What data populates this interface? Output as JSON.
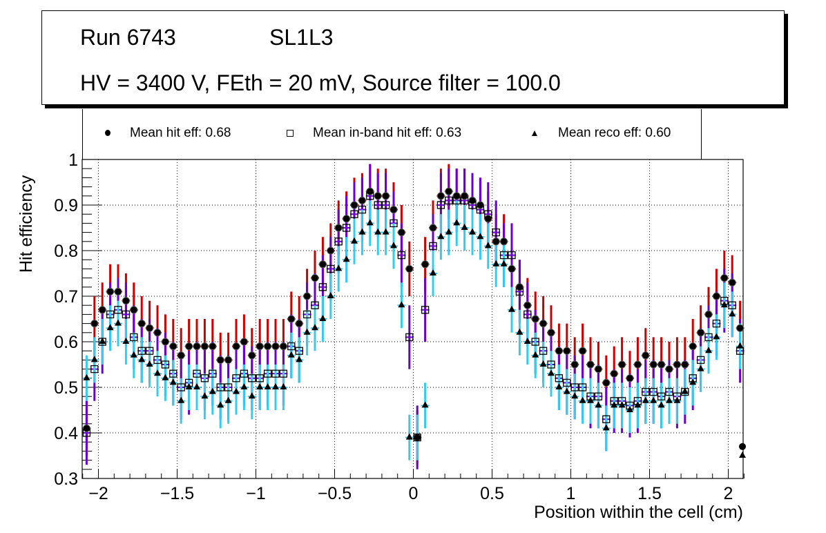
{
  "title": {
    "line1_run": "Run 6743",
    "line1_layer": "SL1L3",
    "line2": "HV = 3400 V, FEth = 20 mV, Source filter = 100.0"
  },
  "legend": [
    {
      "marker": "filled-circle",
      "label": "Mean hit  eff: 0.68"
    },
    {
      "marker": "open-square",
      "label": "Mean in-band hit eff: 0.63"
    },
    {
      "marker": "filled-triangle",
      "label": "Mean reco eff: 0.60"
    }
  ],
  "colors": {
    "hit_err": "#cc0000",
    "inband_err": "#6a00cc",
    "reco_err": "#33ccee",
    "marker": "#000000"
  },
  "chart_data": {
    "type": "scatter",
    "title": "",
    "xlabel": "Position within the cell (cm)",
    "ylabel": "Hit efficiency",
    "xlim": [
      -2.1,
      2.1
    ],
    "ylim": [
      0.3,
      1.0
    ],
    "grid": true,
    "legend_position": "top",
    "xticks": [
      "-2",
      "-1.5",
      "-1",
      "-0.5",
      "0",
      "0.5",
      "1",
      "1.5",
      "2"
    ],
    "xtick_values": [
      -2,
      -1.5,
      -1,
      -0.5,
      0,
      0.5,
      1,
      1.5,
      2
    ],
    "yticks": [
      "0.3",
      "0.4",
      "0.5",
      "0.6",
      "0.7",
      "0.8",
      "0.9",
      "1"
    ],
    "ytick_values": [
      0.3,
      0.4,
      0.5,
      0.6,
      0.7,
      0.8,
      0.9,
      1.0
    ],
    "x_start": -2.075,
    "x_step": 0.05,
    "series": [
      {
        "name": "Mean hit eff",
        "marker": "circle",
        "err": 0.06,
        "values": [
          0.41,
          0.64,
          0.67,
          0.71,
          0.71,
          0.69,
          0.67,
          0.64,
          0.63,
          0.62,
          0.6,
          0.59,
          0.57,
          0.59,
          0.59,
          0.59,
          0.59,
          0.56,
          0.56,
          0.59,
          0.6,
          0.57,
          0.59,
          0.59,
          0.59,
          0.59,
          0.65,
          0.64,
          0.7,
          0.74,
          0.77,
          0.8,
          0.85,
          0.87,
          0.9,
          0.91,
          0.93,
          0.92,
          0.92,
          0.89,
          0.84,
          0.76,
          0.39,
          0.77,
          0.85,
          0.92,
          0.93,
          0.92,
          0.92,
          0.91,
          0.9,
          0.87,
          0.82,
          0.82,
          0.76,
          0.72,
          0.68,
          0.65,
          0.64,
          0.62,
          0.58,
          0.58,
          0.55,
          0.58,
          0.55,
          0.54,
          0.51,
          0.53,
          0.55,
          0.52,
          0.55,
          0.57,
          0.55,
          0.55,
          0.54,
          0.55,
          0.55,
          0.59,
          0.62,
          0.66,
          0.7,
          0.74,
          0.73,
          0.63
        ]
      },
      {
        "name": "Mean in-band hit eff",
        "marker": "square",
        "err": 0.07,
        "values": [
          0.4,
          0.54,
          0.6,
          0.66,
          0.67,
          0.66,
          0.61,
          0.58,
          0.58,
          0.56,
          0.55,
          0.53,
          0.5,
          0.51,
          0.53,
          0.52,
          0.53,
          0.5,
          0.5,
          0.52,
          0.53,
          0.52,
          0.52,
          0.53,
          0.53,
          0.53,
          0.59,
          0.58,
          0.66,
          0.68,
          0.72,
          0.76,
          0.82,
          0.85,
          0.88,
          0.89,
          0.92,
          0.9,
          0.9,
          0.86,
          0.79,
          0.61,
          0.39,
          0.67,
          0.81,
          0.9,
          0.91,
          0.91,
          0.91,
          0.9,
          0.89,
          0.88,
          0.84,
          0.79,
          0.79,
          0.71,
          0.66,
          0.6,
          0.58,
          0.55,
          0.52,
          0.51,
          0.5,
          0.5,
          0.48,
          0.48,
          0.43,
          0.47,
          0.47,
          0.46,
          0.47,
          0.49,
          0.49,
          0.48,
          0.49,
          0.48,
          0.49,
          0.52,
          0.56,
          0.61,
          0.64,
          0.69,
          0.68,
          0.58
        ]
      },
      {
        "name": "Mean reco eff",
        "marker": "triangle",
        "err": 0.05,
        "values": [
          0.52,
          0.56,
          0.6,
          0.63,
          0.64,
          0.6,
          0.57,
          0.56,
          0.55,
          0.53,
          0.52,
          0.51,
          0.47,
          0.5,
          0.5,
          0.48,
          0.49,
          0.46,
          0.47,
          0.49,
          0.5,
          0.48,
          0.5,
          0.5,
          0.5,
          0.5,
          0.57,
          0.56,
          0.62,
          0.63,
          0.65,
          0.7,
          0.76,
          0.78,
          0.82,
          0.84,
          0.86,
          0.84,
          0.84,
          0.81,
          0.68,
          0.39,
          0.39,
          0.46,
          0.75,
          0.83,
          0.84,
          0.86,
          0.85,
          0.84,
          0.83,
          0.81,
          0.77,
          0.77,
          0.67,
          0.62,
          0.6,
          0.57,
          0.55,
          0.53,
          0.5,
          0.49,
          0.48,
          0.47,
          0.47,
          0.46,
          0.41,
          0.46,
          0.46,
          0.45,
          0.46,
          0.47,
          0.47,
          0.46,
          0.47,
          0.47,
          0.49,
          0.51,
          0.54,
          0.58,
          0.61,
          0.68,
          0.66,
          0.59
        ]
      }
    ],
    "extra_points": [
      {
        "series": "Mean hit eff",
        "x": 2.09,
        "y": 0.37
      },
      {
        "series": "Mean reco eff",
        "x": 2.09,
        "y": 0.35
      }
    ]
  }
}
